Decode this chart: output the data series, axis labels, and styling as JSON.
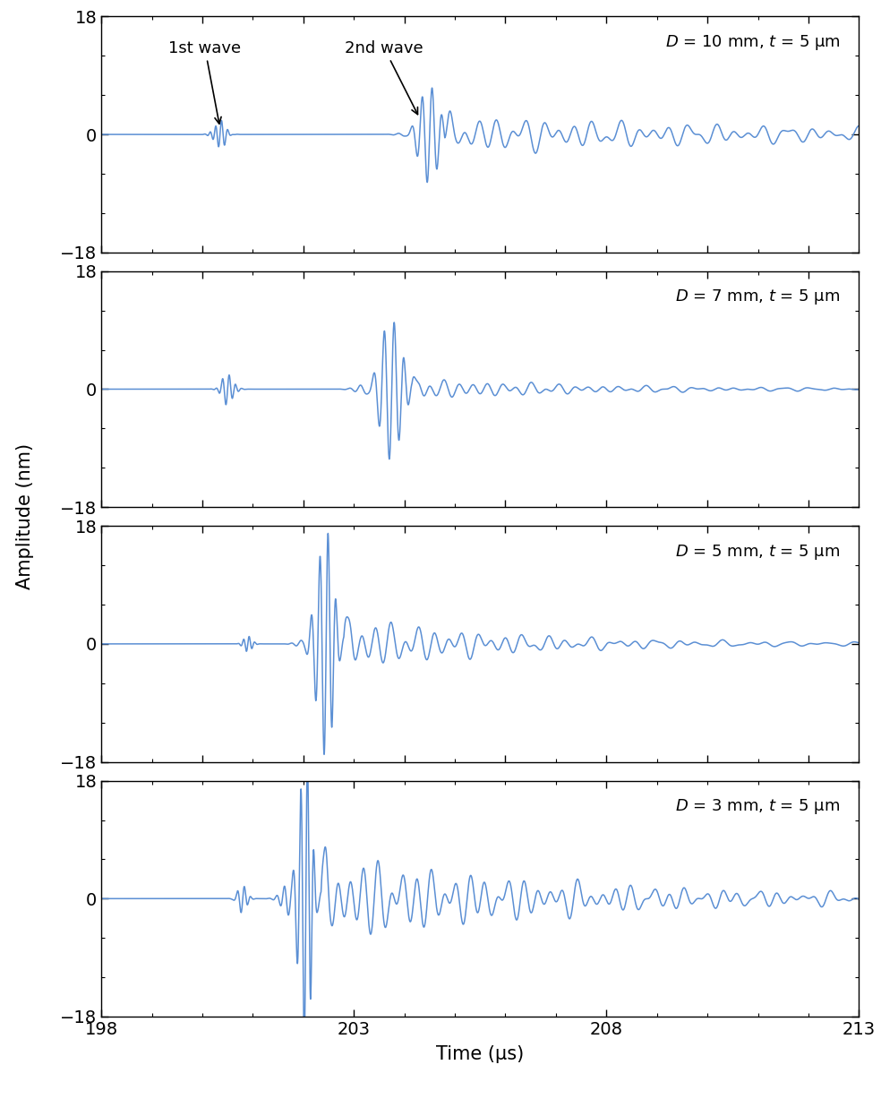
{
  "panels": [
    {
      "label": "$D$ = 10 mm, $t$ = 5 μm",
      "diameter": 10
    },
    {
      "label": "$D$ = 7 mm, $t$ = 5 μm",
      "diameter": 7
    },
    {
      "label": "$D$ = 5 mm, $t$ = 5 μm",
      "diameter": 5
    },
    {
      "label": "$D$ = 3 mm, $t$ = 5 μm",
      "diameter": 3
    }
  ],
  "xlim": [
    198,
    213
  ],
  "ylim": [
    -18,
    18
  ],
  "xticks": [
    198,
    203,
    208,
    213
  ],
  "yticks": [
    -18,
    0,
    18
  ],
  "xlabel": "Time (μs)",
  "ylabel": "Amplitude (nm)",
  "line_color": "#5b8fd4",
  "line_width": 1.1,
  "bg_color": "white",
  "figsize": [
    9.84,
    12.27
  ],
  "dpi": 100
}
